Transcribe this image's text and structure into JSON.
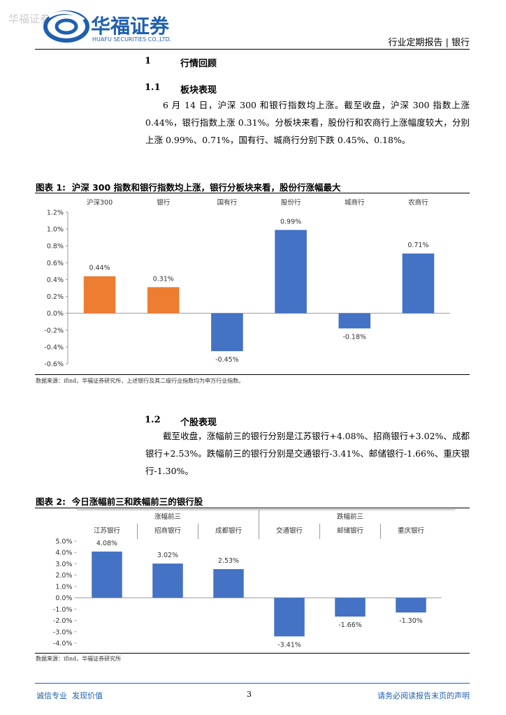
{
  "header": {
    "watermark": "华福证券",
    "logo_name": "华福证券",
    "logo_english": "HUAFU SECURITIES CO.,LTD.",
    "report_type": "行业定期报告 | 银行"
  },
  "sections": [
    {
      "number": "1",
      "title": "行情回顾"
    },
    {
      "number": "1.1",
      "title": "板块表现",
      "paragraph": "6 月 14 日，沪深 300 和银行指数均上涨。截至收盘，沪深 300 指数上涨 0.44%，银行指数上涨 0.31%。分板块来看，股份行和农商行上涨幅度较大，分别上涨 0.99%、0.71%，国有行、城商行分别下跌 0.45%、0.18%。"
    },
    {
      "number": "1.2",
      "title": "个股表现",
      "paragraph": "截至收盘，涨幅前三的银行分别是江苏银行+4.08%、招商银行+3.02%、成都银行+2.53%。跌幅前三的银行分别是交通银行-3.41%、邮储银行-1.66%、重庆银行-1.30%。"
    }
  ],
  "figures": [
    {
      "caption": "图表 1:  沪深 300 指数和银行指数均上涨，银行分板块来看，股份行涨幅最大",
      "source": "数据来源：ifind，华福证券研究所，上述银行及其二级行业指数均为申万行业指数。"
    },
    {
      "caption": "图表 2:  今日涨幅前三和跌幅前三的银行股",
      "source": "数据来源：ifind，华福证券研究所"
    }
  ],
  "chart_data": [
    {
      "type": "bar",
      "categories": [
        "沪深300",
        "银行",
        "国有行",
        "股份行",
        "城商行",
        "农商行"
      ],
      "values": [
        0.44,
        0.31,
        -0.45,
        0.99,
        -0.18,
        0.71
      ],
      "value_labels": [
        "0.44%",
        "0.31%",
        "-0.45%",
        "0.99%",
        "-0.18%",
        "0.71%"
      ],
      "colors": [
        "#ED7D31",
        "#ED7D31",
        "#4472C4",
        "#4472C4",
        "#4472C4",
        "#4472C4"
      ],
      "ylim": [
        -0.6,
        1.2
      ],
      "yticks": [
        {
          "value": -0.6,
          "label": "-0.6%"
        },
        {
          "value": -0.4,
          "label": "-0.4%"
        },
        {
          "value": -0.2,
          "label": "-0.2%"
        },
        {
          "value": 0,
          "label": "0.0%"
        },
        {
          "value": 0.2,
          "label": "0.2%"
        },
        {
          "value": 0.4,
          "label": "0.4%"
        },
        {
          "value": 0.6,
          "label": "0.6%"
        },
        {
          "value": 0.8,
          "label": "0.8%"
        },
        {
          "value": 1.0,
          "label": "1.0%"
        },
        {
          "value": 1.2,
          "label": "1.2%"
        }
      ]
    },
    {
      "type": "bar",
      "groups": [
        "涨幅前三",
        "跌幅前三"
      ],
      "categories": [
        "江苏银行",
        "招商银行",
        "成都银行",
        "交通银行",
        "邮储银行",
        "重庆银行"
      ],
      "values": [
        4.08,
        3.02,
        2.53,
        -3.41,
        -1.66,
        -1.3
      ],
      "value_labels": [
        "4.08%",
        "3.02%",
        "2.53%",
        "-3.41%",
        "-1.66%",
        "-1.30%"
      ],
      "color": "#4472C4",
      "ylim": [
        -4,
        5
      ],
      "yticks": [
        {
          "value": -4,
          "label": "-4.0%"
        },
        {
          "value": -3,
          "label": "-3.0%"
        },
        {
          "value": -2,
          "label": "-2.0%"
        },
        {
          "value": -1,
          "label": "-1.0%"
        },
        {
          "value": 0,
          "label": "0.0%"
        },
        {
          "value": 1,
          "label": "1.0%"
        },
        {
          "value": 2,
          "label": "2.0%"
        },
        {
          "value": 3,
          "label": "3.0%"
        },
        {
          "value": 4,
          "label": "4.0%"
        },
        {
          "value": 5,
          "label": "5.0%"
        }
      ]
    }
  ],
  "footer": {
    "left": "诚信专业  发现价值",
    "page": "3",
    "right": "请务必阅读报告末页的声明"
  }
}
